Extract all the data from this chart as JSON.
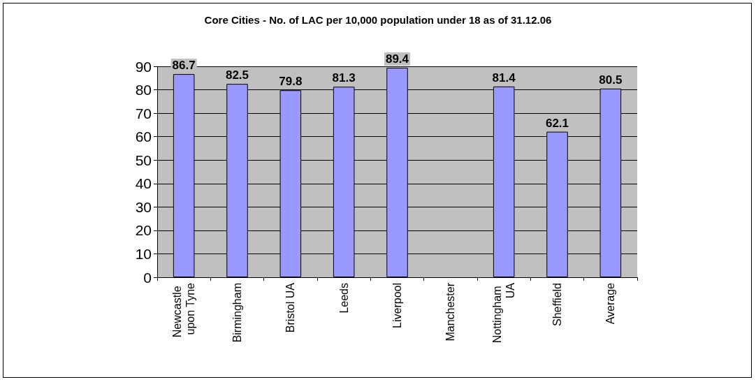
{
  "chart_data": {
    "type": "bar",
    "title": "Core Cities - No. of LAC per 10,000 population under 18 as of 31.12.06",
    "categories": [
      "Newcastle upon Tyne",
      "Birmingham",
      "Bristol UA",
      "Leeds",
      "Liverpool",
      "Manchester",
      "Nottingham UA",
      "Sheffield",
      "Average"
    ],
    "values": [
      86.7,
      82.5,
      79.8,
      81.3,
      89.4,
      0,
      81.4,
      62.1,
      80.5
    ],
    "value_labels": [
      "86.7",
      "82.5",
      "79.8",
      "81.3",
      "89.4",
      null,
      "81.4",
      "62.1",
      "80.5"
    ],
    "color": "#9999ff",
    "ylim": [
      0,
      90
    ],
    "yticks": [
      0,
      10,
      20,
      30,
      40,
      50,
      60,
      70,
      80,
      90
    ],
    "grid": "y"
  }
}
